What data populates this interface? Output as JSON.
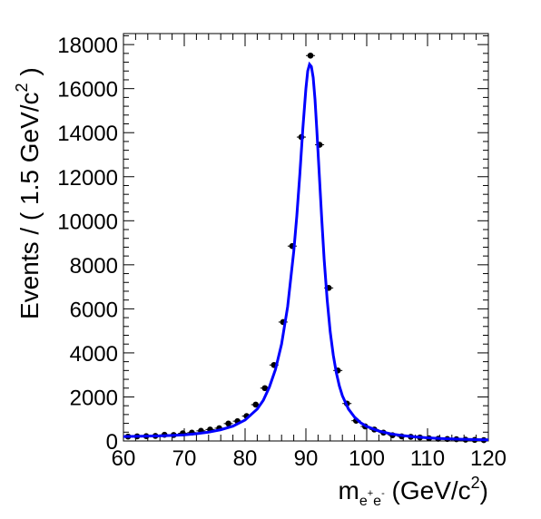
{
  "chart_data": {
    "type": "scatter",
    "title": "",
    "xlabel": {
      "main": "m",
      "sub1": "e",
      "sup1": "+",
      "sub2": "e",
      "sup2": "-",
      "units": " (GeV/c",
      "units_sup": "2",
      "units_end": ")"
    },
    "ylabel": {
      "main": "Events / ( 1.5 GeV/c",
      "sup": "2",
      "end": " )"
    },
    "xlim": [
      60,
      120
    ],
    "ylim": [
      0,
      18500
    ],
    "xticks": [
      60,
      70,
      80,
      90,
      100,
      110,
      120
    ],
    "yticks": [
      0,
      2000,
      4000,
      6000,
      8000,
      10000,
      12000,
      14000,
      16000,
      18000
    ],
    "bin_width": 1.5,
    "grid": false,
    "legend": "none",
    "series": [
      {
        "style": "points-with-error-bars",
        "color": "#000000",
        "x": [
          60.75,
          62.25,
          63.75,
          65.25,
          66.75,
          68.25,
          69.75,
          71.25,
          72.75,
          74.25,
          75.75,
          77.25,
          78.75,
          80.25,
          81.75,
          83.25,
          84.75,
          86.25,
          87.75,
          89.25,
          90.75,
          92.25,
          93.75,
          95.25,
          96.75,
          98.25,
          99.75,
          101.25,
          102.75,
          104.25,
          105.75,
          107.25,
          108.75,
          110.25,
          111.75,
          113.25,
          114.75,
          116.25,
          117.75,
          119.25
        ],
        "y": [
          200,
          210,
          220,
          230,
          280,
          270,
          350,
          380,
          460,
          520,
          580,
          790,
          900,
          1130,
          1650,
          2400,
          3450,
          5400,
          8850,
          13800,
          17500,
          13450,
          6950,
          3200,
          1700,
          920,
          660,
          520,
          380,
          260,
          210,
          190,
          160,
          120,
          100,
          90,
          80,
          60,
          50,
          40
        ]
      },
      {
        "style": "line",
        "color": "#0000ff",
        "x": [
          60,
          62,
          64,
          66,
          68,
          70,
          72,
          74,
          76,
          78,
          80,
          82,
          83,
          84,
          85,
          86,
          87,
          88,
          88.5,
          89,
          89.5,
          90,
          90.3,
          90.6,
          90.9,
          91.2,
          91.5,
          91.8,
          92.2,
          92.6,
          93,
          93.5,
          94,
          94.5,
          95,
          95.5,
          96,
          97,
          98,
          99,
          100,
          102,
          104,
          106,
          108,
          110,
          112,
          114,
          116,
          118,
          120
        ],
        "y": [
          200,
          210,
          220,
          230,
          250,
          280,
          330,
          400,
          510,
          670,
          950,
          1450,
          1850,
          2450,
          3250,
          4400,
          6100,
          8600,
          10200,
          12100,
          14200,
          16000,
          16800,
          17100,
          17000,
          16500,
          15500,
          14100,
          12100,
          10100,
          8250,
          6400,
          4950,
          3900,
          3100,
          2500,
          2050,
          1450,
          1080,
          830,
          660,
          450,
          320,
          240,
          185,
          145,
          115,
          92,
          75,
          62,
          52
        ]
      }
    ]
  }
}
